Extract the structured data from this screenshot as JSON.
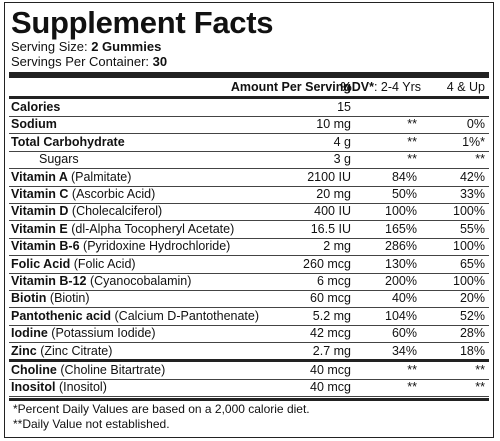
{
  "title": "Supplement Facts",
  "serving_size": {
    "label": "Serving Size:",
    "value": "2 Gummies"
  },
  "servings_per_container": {
    "label": "Servings Per Container:",
    "value": "30"
  },
  "header": {
    "amount": "Amount Per Serving",
    "dv": "%DV*",
    "dv_2_4": ": 2-4 Yrs",
    "dv_4_up": "4 & Up"
  },
  "sections": [
    [
      {
        "name": "Calories",
        "amount": "15"
      },
      {
        "name": "Sodium",
        "amount": "10 mg",
        "dv_2_4": "**",
        "dv_4_up": "0%"
      },
      {
        "name": "Total Carbohydrate",
        "amount": "4 g",
        "dv_2_4": "**",
        "dv_4_up": "1%*"
      },
      {
        "name": "Sugars",
        "amount": "3 g",
        "dv_2_4": "**",
        "dv_4_up": "**",
        "indent": true
      },
      {
        "name": "Vitamin A",
        "detail": "(Palmitate)",
        "amount": "2100 IU",
        "dv_2_4": "84%",
        "dv_4_up": "42%"
      },
      {
        "name": "Vitamin C",
        "detail": "(Ascorbic Acid)",
        "amount": "20 mg",
        "dv_2_4": "50%",
        "dv_4_up": "33%"
      },
      {
        "name": "Vitamin D",
        "detail": "(Cholecalciferol)",
        "amount": "400 IU",
        "dv_2_4": "100%",
        "dv_4_up": "100%"
      },
      {
        "name": "Vitamin E",
        "detail": "(dl-Alpha Tocopheryl Acetate)",
        "amount": "16.5 IU",
        "dv_2_4": "165%",
        "dv_4_up": "55%"
      },
      {
        "name": "Vitamin B-6",
        "detail": "(Pyridoxine Hydrochloride)",
        "amount": "2 mg",
        "dv_2_4": "286%",
        "dv_4_up": "100%"
      },
      {
        "name": "Folic Acid",
        "detail": "(Folic Acid)",
        "amount": "260 mcg",
        "dv_2_4": "130%",
        "dv_4_up": "65%"
      },
      {
        "name": "Vitamin B-12",
        "detail": "(Cyanocobalamin)",
        "amount": "6 mcg",
        "dv_2_4": "200%",
        "dv_4_up": "100%"
      },
      {
        "name": "Biotin",
        "detail": "(Biotin)",
        "amount": "60 mcg",
        "dv_2_4": "40%",
        "dv_4_up": "20%"
      },
      {
        "name": "Pantothenic acid",
        "detail": "(Calcium D-Pantothenate)",
        "amount": "5.2 mg",
        "dv_2_4": "104%",
        "dv_4_up": "52%"
      },
      {
        "name": "Iodine",
        "detail": "(Potassium Iodide)",
        "amount": "42 mcg",
        "dv_2_4": "60%",
        "dv_4_up": "28%"
      },
      {
        "name": "Zinc",
        "detail": "(Zinc Citrate)",
        "amount": "2.7 mg",
        "dv_2_4": "34%",
        "dv_4_up": "18%"
      }
    ],
    [
      {
        "name": "Choline",
        "detail": "(Choline Bitartrate)",
        "amount": "40 mcg",
        "dv_2_4": "**",
        "dv_4_up": "**"
      },
      {
        "name": "Inositol",
        "detail": "(Inositol)",
        "amount": "40 mcg",
        "dv_2_4": "**",
        "dv_4_up": "**"
      }
    ]
  ],
  "footnotes": [
    "*Percent Daily Values are based on a 2,000 calorie diet.",
    "**Daily Value not established."
  ]
}
